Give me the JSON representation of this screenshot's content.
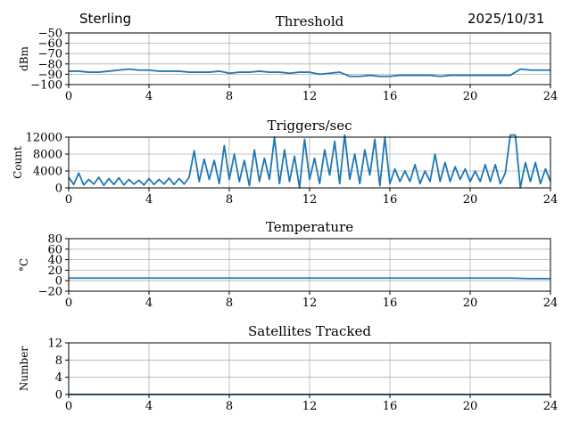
{
  "header": {
    "station": "Sterling",
    "date": "2025/10/31"
  },
  "colors": {
    "line": "#1f77b4",
    "grid": "#b0b0b0"
  },
  "chart_data": [
    {
      "type": "line",
      "title": "Threshold",
      "ylabel": "dBm",
      "xlim": [
        0,
        24
      ],
      "ylim": [
        -100,
        -50
      ],
      "xticks": [
        0,
        4,
        8,
        12,
        16,
        20,
        24
      ],
      "yticks": [
        -50,
        -60,
        -70,
        -80,
        -90,
        -100
      ],
      "ytick_labels": [
        "−50",
        "−60",
        "−70",
        "−80",
        "−90",
        "−100"
      ],
      "grid": true,
      "step": 0.5,
      "values": [
        -87,
        -87,
        -88,
        -88,
        -87,
        -86,
        -85,
        -86,
        -86,
        -87,
        -87,
        -87,
        -88,
        -88,
        -88,
        -87,
        -89,
        -88,
        -88,
        -87,
        -88,
        -88,
        -89,
        -88,
        -88,
        -90,
        -89,
        -88,
        -92,
        -92,
        -91,
        -92,
        -92,
        -91,
        -91,
        -91,
        -91,
        -92,
        -91,
        -91,
        -91,
        -91,
        -91,
        -91,
        -91,
        -85,
        -86,
        -86,
        -86
      ]
    },
    {
      "type": "line",
      "title": "Triggers/sec",
      "ylabel": "Count",
      "xlim": [
        0,
        24
      ],
      "ylim": [
        0,
        12000
      ],
      "xticks": [
        0,
        4,
        8,
        12,
        16,
        20,
        24
      ],
      "yticks": [
        0,
        4000,
        8000,
        12000
      ],
      "ytick_labels": [
        "0",
        "4000",
        "8000",
        "12000"
      ],
      "grid": true,
      "step": 0.25,
      "values": [
        2500,
        800,
        3500,
        700,
        2000,
        900,
        2500,
        600,
        2200,
        800,
        2400,
        700,
        2000,
        900,
        1800,
        700,
        2200,
        800,
        2000,
        900,
        2300,
        800,
        2200,
        900,
        2500,
        8800,
        1500,
        6800,
        2000,
        6500,
        1000,
        10000,
        2000,
        8000,
        1500,
        6500,
        500,
        9000,
        1500,
        7000,
        2000,
        12000,
        1000,
        9000,
        1500,
        7500,
        0,
        11500,
        2000,
        7000,
        1000,
        9000,
        3000,
        11000,
        1000,
        12500,
        2000,
        8000,
        1000,
        9000,
        3000,
        11500,
        500,
        12000,
        1000,
        4500,
        1500,
        4000,
        1500,
        5500,
        1000,
        4000,
        1500,
        8000,
        1500,
        6000,
        1500,
        5000,
        2000,
        4500,
        1500,
        4000,
        1500,
        5500,
        1500,
        5500,
        1000,
        3500,
        12500,
        12500,
        0,
        6000,
        1500,
        6000,
        1000,
        4500,
        1500
      ]
    },
    {
      "type": "line",
      "title": "Temperature",
      "ylabel": "°C",
      "xlim": [
        0,
        24
      ],
      "ylim": [
        -20,
        80
      ],
      "xticks": [
        0,
        4,
        8,
        12,
        16,
        20,
        24
      ],
      "yticks": [
        -20,
        0,
        20,
        40,
        60,
        80
      ],
      "ytick_labels": [
        "−20",
        "0",
        "20",
        "40",
        "60",
        "80"
      ],
      "grid": true,
      "step": 1,
      "values": [
        5,
        5,
        5,
        5,
        5,
        5,
        5,
        5,
        5,
        5,
        5,
        5,
        5,
        5,
        5,
        5,
        5,
        5,
        5,
        5,
        5,
        5,
        5,
        4,
        4
      ]
    },
    {
      "type": "line",
      "title": "Satellites Tracked",
      "ylabel": "Number",
      "xlim": [
        0,
        24
      ],
      "ylim": [
        0,
        12
      ],
      "xticks": [
        0,
        4,
        8,
        12,
        16,
        20,
        24
      ],
      "yticks": [
        0,
        4,
        8,
        12
      ],
      "ytick_labels": [
        "0",
        "4",
        "8",
        "12"
      ],
      "grid": true,
      "step": 1,
      "values": [
        0,
        0,
        0,
        0,
        0,
        0,
        0,
        0,
        0,
        0,
        0,
        0,
        0,
        0,
        0,
        0,
        0,
        0,
        0,
        0,
        0,
        0,
        0,
        0,
        0
      ]
    }
  ]
}
